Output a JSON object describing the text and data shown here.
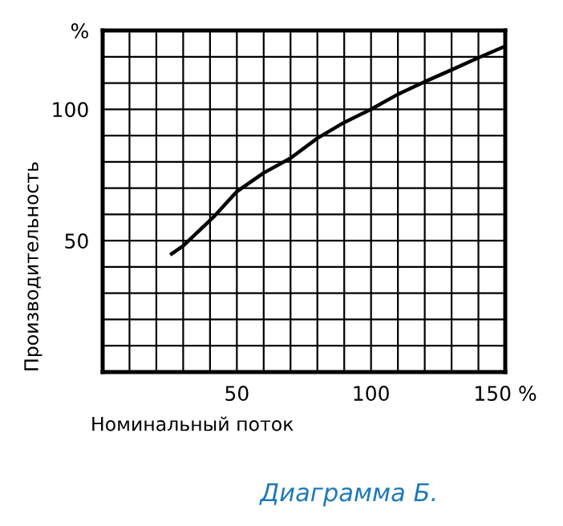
{
  "chart_data": {
    "type": "line",
    "xlabel": "Номинальный поток",
    "ylabel": "Производительность",
    "annotations": [
      "Диаграмма Б."
    ],
    "x": [
      25.7,
      30,
      41.3,
      50,
      60,
      70,
      80,
      90,
      100,
      110,
      120,
      130,
      140,
      150
    ],
    "series": [
      {
        "color": "#000000",
        "values": [
          45,
          48,
          59,
          68.7,
          75.8,
          81.4,
          89,
          95,
          100,
          105.7,
          110.5,
          115,
          119.6,
          124
        ]
      }
    ],
    "xlim": [
      0,
      150
    ],
    "ylim": [
      0,
      130
    ],
    "xticks": [
      {
        "value": 0,
        "label": null
      },
      {
        "value": 10,
        "label": null
      },
      {
        "value": 20,
        "label": null
      },
      {
        "value": 30,
        "label": null
      },
      {
        "value": 40,
        "label": null
      },
      50,
      {
        "value": 60,
        "label": null
      },
      {
        "value": 70,
        "label": null
      },
      {
        "value": 80,
        "label": null
      },
      {
        "value": 90,
        "label": null
      },
      100,
      {
        "value": 110,
        "label": null
      },
      {
        "value": 120,
        "label": null
      },
      {
        "value": 130,
        "label": null
      },
      {
        "value": 140,
        "label": null
      },
      {
        "value": 150,
        "label": "150 %"
      }
    ],
    "yticks": [
      {
        "value": 0,
        "label": null
      },
      {
        "value": 10,
        "label": null
      },
      {
        "value": 20,
        "label": null
      },
      {
        "value": 30,
        "label": null
      },
      {
        "value": 40,
        "label": null
      },
      50,
      {
        "value": 60,
        "label": null
      },
      {
        "value": 70,
        "label": null
      },
      {
        "value": 80,
        "label": null
      },
      {
        "value": 90,
        "label": null
      },
      100,
      {
        "value": 110,
        "label": null
      },
      {
        "value": 120,
        "label": null
      },
      {
        "value": 130,
        "label": "%"
      }
    ],
    "grid": true,
    "legend": false,
    "marker": "none",
    "line_style": "solid"
  }
}
